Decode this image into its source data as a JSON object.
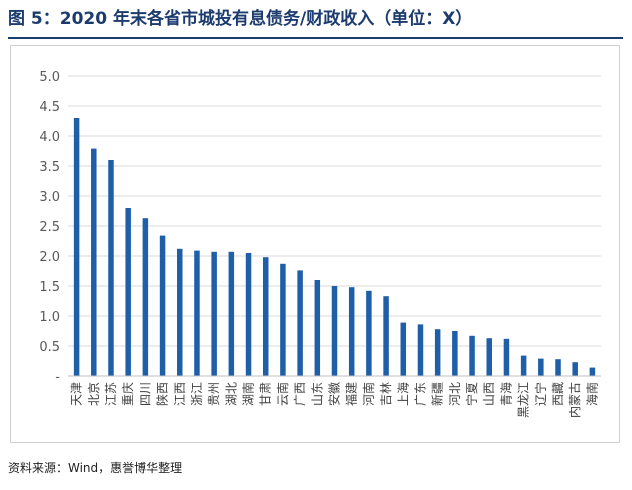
{
  "title": "图 5：2020 年末各省市城投有息债务/财政收入（单位：X）",
  "source": "资料来源：Wind，惠誉博华整理",
  "colors": {
    "bar": "#1f5fa8",
    "grid": "#d9d9d9",
    "axis": "#bfbfbf",
    "title": "#1c3b6e"
  },
  "chart_data": {
    "type": "bar",
    "title": "",
    "xlabel": "",
    "ylabel": "",
    "ylim": [
      0,
      5
    ],
    "ytick_labels": [
      "-",
      "0.5",
      "1.0",
      "1.5",
      "2.0",
      "2.5",
      "3.0",
      "3.5",
      "4.0",
      "4.5",
      "5.0"
    ],
    "grid": true,
    "legend": "none",
    "categories": [
      "天津",
      "北京",
      "江苏",
      "重庆",
      "四川",
      "陕西",
      "江西",
      "浙江",
      "贵州",
      "湖北",
      "湖南",
      "甘肃",
      "云南",
      "广西",
      "山东",
      "安徽",
      "福建",
      "河南",
      "吉林",
      "上海",
      "广东",
      "新疆",
      "河北",
      "宁夏",
      "山西",
      "青海",
      "黑龙江",
      "辽宁",
      "西藏",
      "内蒙古",
      "海南"
    ],
    "values": [
      4.3,
      3.79,
      3.6,
      2.8,
      2.63,
      2.34,
      2.12,
      2.09,
      2.07,
      2.07,
      2.05,
      1.98,
      1.87,
      1.76,
      1.6,
      1.5,
      1.48,
      1.42,
      1.33,
      0.89,
      0.86,
      0.78,
      0.75,
      0.67,
      0.63,
      0.62,
      0.34,
      0.29,
      0.28,
      0.23,
      0.14
    ]
  }
}
